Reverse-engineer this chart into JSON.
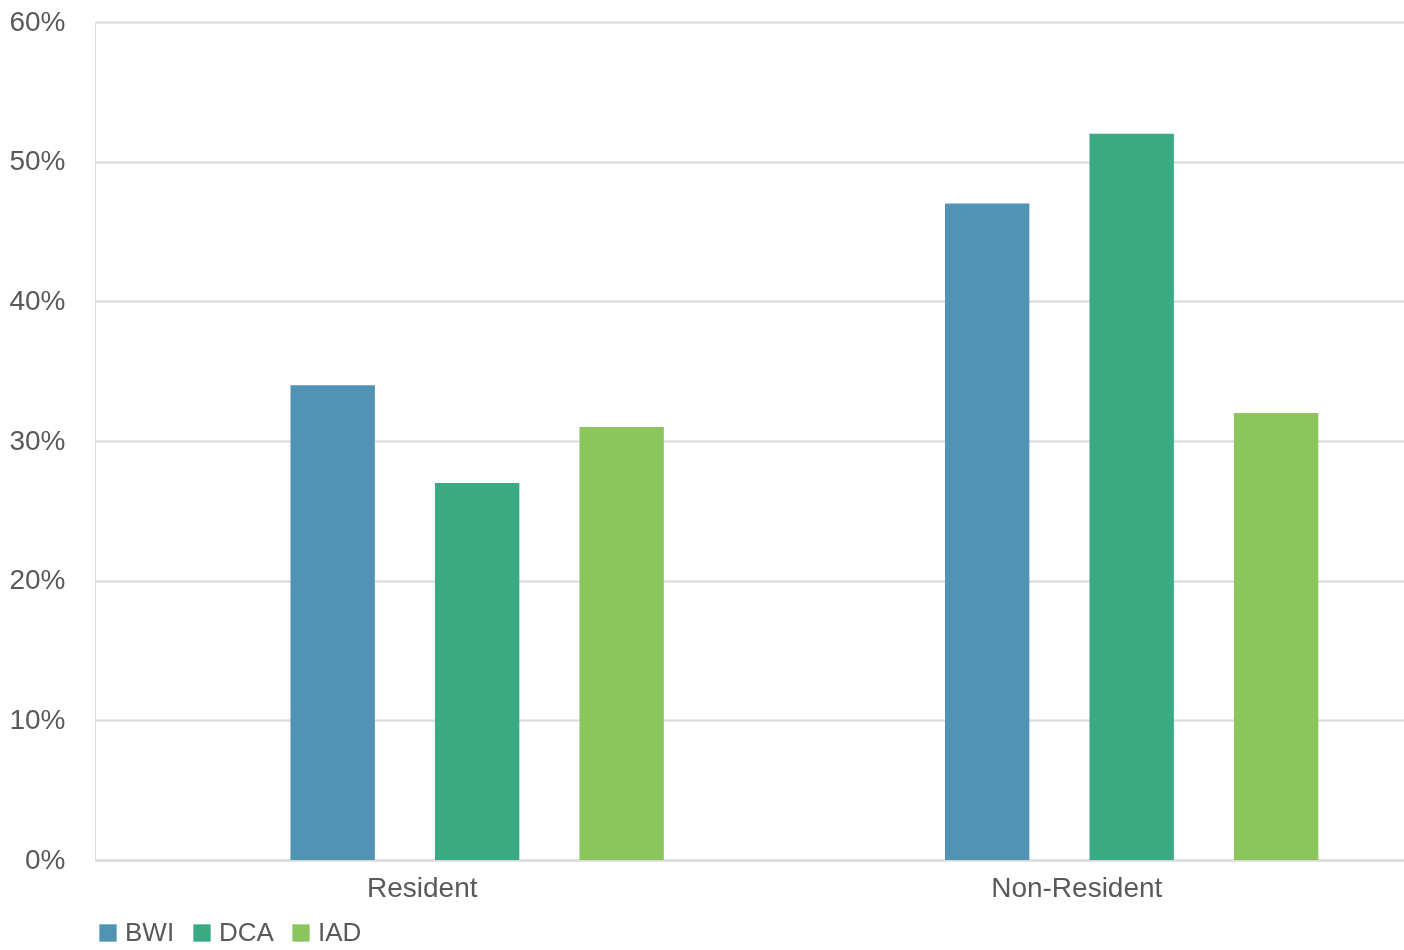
{
  "chart_data": {
    "type": "bar",
    "categories": [
      "Resident",
      "Non-Resident"
    ],
    "series": [
      {
        "name": "BWI",
        "color": "#5093b5",
        "values": [
          34,
          47
        ]
      },
      {
        "name": "DCA",
        "color": "#3aaa82",
        "values": [
          27,
          52
        ]
      },
      {
        "name": "IAD",
        "color": "#8bc65c",
        "values": [
          31,
          32
        ]
      }
    ],
    "ylim": [
      0,
      60
    ],
    "yticks": [
      {
        "value": 0,
        "label": "0%"
      },
      {
        "value": 10,
        "label": "10%"
      },
      {
        "value": 20,
        "label": "20%"
      },
      {
        "value": 30,
        "label": "30%"
      },
      {
        "value": 40,
        "label": "40%"
      },
      {
        "value": 50,
        "label": "50%"
      },
      {
        "value": 60,
        "label": "60%"
      }
    ],
    "grid": "y",
    "legend": "bottom"
  }
}
